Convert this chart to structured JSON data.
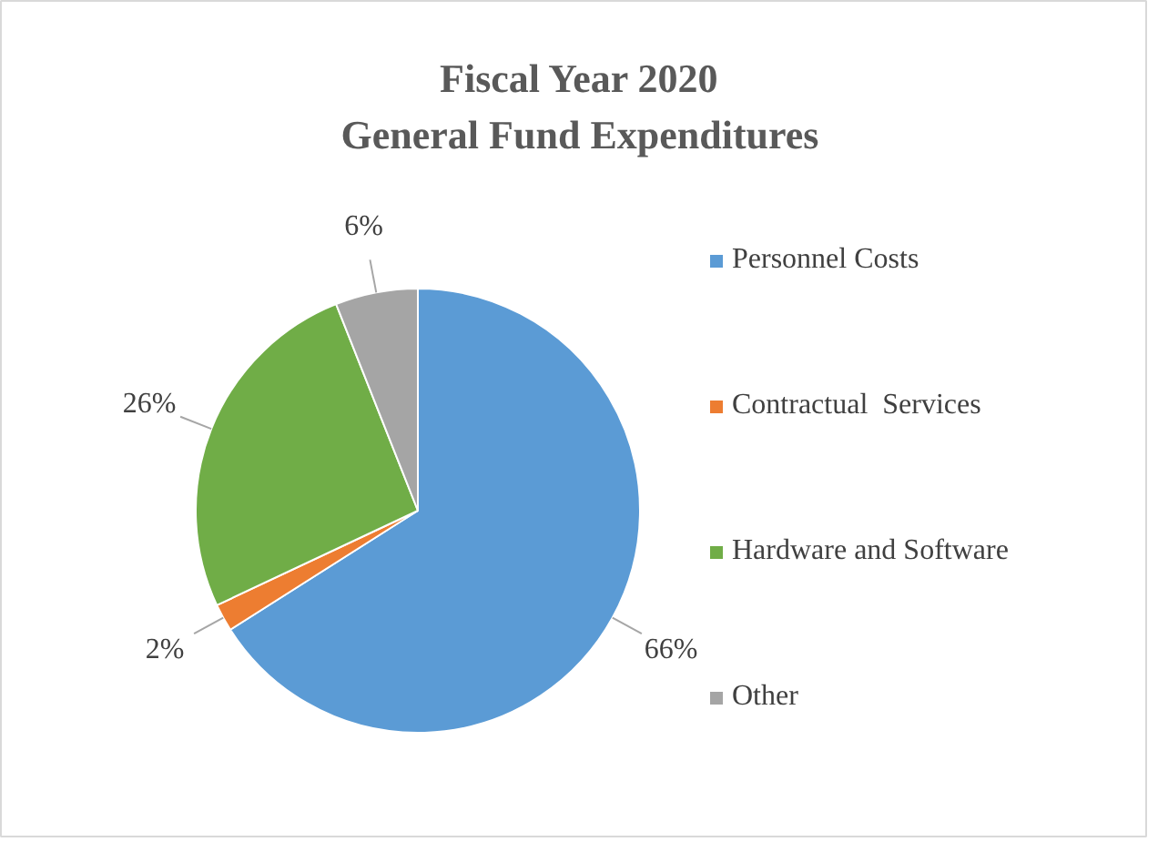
{
  "chart_data": {
    "type": "pie",
    "title": "Fiscal Year 2020\nGeneral Fund Expenditures",
    "categories": [
      "Personnel Costs",
      "Contractual  Services",
      "Hardware and Software",
      "Other"
    ],
    "values": [
      66,
      2,
      26,
      6
    ],
    "colors": [
      "#5b9bd5",
      "#ed7d31",
      "#70ad47",
      "#a5a5a5"
    ],
    "value_labels": [
      "66%",
      "2%",
      "26%",
      "6%"
    ],
    "legend": "right"
  }
}
